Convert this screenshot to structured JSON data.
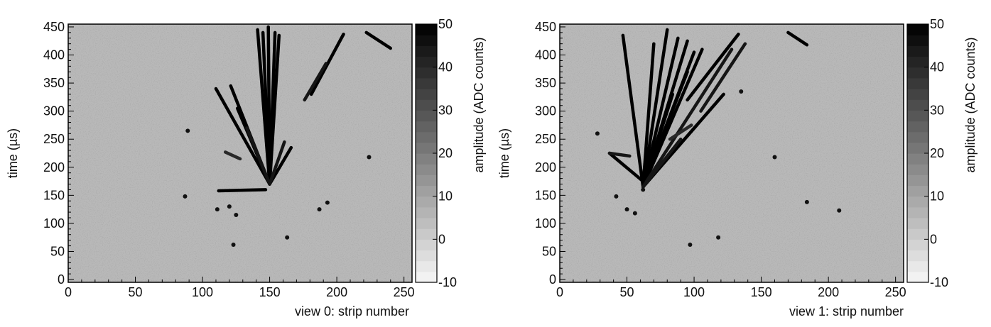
{
  "chart_data": [
    {
      "type": "heatmap",
      "xlabel": "view 0: strip number",
      "ylabel": "time (µs)",
      "xlim": [
        0,
        256
      ],
      "ylim": [
        -5,
        455
      ],
      "x_ticks": [
        0,
        50,
        100,
        150,
        200,
        250
      ],
      "y_ticks": [
        0,
        50,
        100,
        150,
        200,
        250,
        300,
        350,
        400,
        450
      ],
      "colorbar": {
        "label": "amplitude (ADC counts)",
        "range": [
          -10,
          50
        ],
        "ticks": [
          -10,
          0,
          10,
          20,
          30,
          40,
          50
        ],
        "levels": 24,
        "colormap": "white-to-black"
      },
      "background_level_adc": 5,
      "tracks": [
        {
          "from": [
            150,
            170
          ],
          "to": [
            149,
            450
          ],
          "amplitude": 50
        },
        {
          "from": [
            150,
            170
          ],
          "to": [
            141,
            445
          ],
          "amplitude": 50
        },
        {
          "from": [
            150,
            170
          ],
          "to": [
            157,
            435
          ],
          "amplitude": 50
        },
        {
          "from": [
            150,
            170
          ],
          "to": [
            145,
            440
          ],
          "amplitude": 50
        },
        {
          "from": [
            150,
            170
          ],
          "to": [
            154,
            440
          ],
          "amplitude": 50
        },
        {
          "from": [
            150,
            170
          ],
          "to": [
            121,
            345
          ],
          "amplitude": 50
        },
        {
          "from": [
            150,
            170
          ],
          "to": [
            110,
            340
          ],
          "amplitude": 50
        },
        {
          "from": [
            150,
            170
          ],
          "to": [
            126,
            305
          ],
          "amplitude": 50
        },
        {
          "from": [
            150,
            170
          ],
          "to": [
            133,
            270
          ],
          "amplitude": 45
        },
        {
          "from": [
            150,
            170
          ],
          "to": [
            166,
            235
          ],
          "amplitude": 50
        },
        {
          "from": [
            150,
            170
          ],
          "to": [
            161,
            245
          ],
          "amplitude": 45
        },
        {
          "from": [
            147,
            160
          ],
          "to": [
            112,
            158
          ],
          "amplitude": 50
        },
        {
          "from": [
            181,
            330
          ],
          "to": [
            205,
            437
          ],
          "amplitude": 50
        },
        {
          "from": [
            176,
            320
          ],
          "to": [
            192,
            385
          ],
          "amplitude": 45
        },
        {
          "from": [
            117,
            227
          ],
          "to": [
            128,
            215
          ],
          "amplitude": 40
        },
        {
          "from": [
            222,
            440
          ],
          "to": [
            240,
            412
          ],
          "amplitude": 50
        }
      ],
      "spots": [
        [
          87,
          148
        ],
        [
          111,
          125
        ],
        [
          120,
          130
        ],
        [
          125,
          115
        ],
        [
          123,
          62
        ],
        [
          163,
          75
        ],
        [
          187,
          125
        ],
        [
          193,
          137
        ],
        [
          224,
          218
        ],
        [
          89,
          265
        ]
      ]
    },
    {
      "type": "heatmap",
      "xlabel": "view 1: strip number",
      "ylabel": "time (µs)",
      "xlim": [
        0,
        256
      ],
      "ylim": [
        -5,
        455
      ],
      "x_ticks": [
        0,
        50,
        100,
        150,
        200,
        250
      ],
      "y_ticks": [
        0,
        50,
        100,
        150,
        200,
        250,
        300,
        350,
        400,
        450
      ],
      "colorbar": {
        "label": "amplitude (ADC counts)",
        "range": [
          -10,
          50
        ],
        "ticks": [
          -10,
          0,
          10,
          20,
          30,
          40,
          50
        ],
        "levels": 24,
        "colormap": "white-to-black"
      },
      "background_level_adc": 5,
      "tracks": [
        {
          "from": [
            62,
            165
          ],
          "to": [
            47,
            435
          ],
          "amplitude": 50
        },
        {
          "from": [
            62,
            165
          ],
          "to": [
            70,
            420
          ],
          "amplitude": 50
        },
        {
          "from": [
            62,
            165
          ],
          "to": [
            80,
            445
          ],
          "amplitude": 50
        },
        {
          "from": [
            62,
            165
          ],
          "to": [
            88,
            430
          ],
          "amplitude": 50
        },
        {
          "from": [
            62,
            165
          ],
          "to": [
            95,
            425
          ],
          "amplitude": 50
        },
        {
          "from": [
            62,
            165
          ],
          "to": [
            100,
            405
          ],
          "amplitude": 50
        },
        {
          "from": [
            62,
            165
          ],
          "to": [
            84,
            330
          ],
          "amplitude": 50
        },
        {
          "from": [
            62,
            165
          ],
          "to": [
            95,
            370
          ],
          "amplitude": 50
        },
        {
          "from": [
            62,
            165
          ],
          "to": [
            106,
            410
          ],
          "amplitude": 50
        },
        {
          "from": [
            62,
            165
          ],
          "to": [
            128,
            410
          ],
          "amplitude": 45
        },
        {
          "from": [
            62,
            165
          ],
          "to": [
            102,
            275
          ],
          "amplitude": 45
        },
        {
          "from": [
            62,
            165
          ],
          "to": [
            122,
            330
          ],
          "amplitude": 50
        },
        {
          "from": [
            62,
            165
          ],
          "to": [
            90,
            250
          ],
          "amplitude": 45
        },
        {
          "from": [
            95,
            320
          ],
          "to": [
            133,
            437
          ],
          "amplitude": 50
        },
        {
          "from": [
            105,
            300
          ],
          "to": [
            138,
            420
          ],
          "amplitude": 45
        },
        {
          "from": [
            62,
            175
          ],
          "to": [
            37,
            225
          ],
          "amplitude": 50
        },
        {
          "from": [
            37,
            225
          ],
          "to": [
            52,
            220
          ],
          "amplitude": 45
        },
        {
          "from": [
            170,
            440
          ],
          "to": [
            184,
            418
          ],
          "amplitude": 50
        },
        {
          "from": [
            82,
            250
          ],
          "to": [
            98,
            275
          ],
          "amplitude": 40
        }
      ],
      "spots": [
        [
          62,
          160
        ],
        [
          42,
          148
        ],
        [
          50,
          125
        ],
        [
          56,
          118
        ],
        [
          28,
          260
        ],
        [
          97,
          62
        ],
        [
          118,
          75
        ],
        [
          184,
          138
        ],
        [
          208,
          123
        ],
        [
          160,
          218
        ],
        [
          135,
          335
        ]
      ]
    }
  ]
}
